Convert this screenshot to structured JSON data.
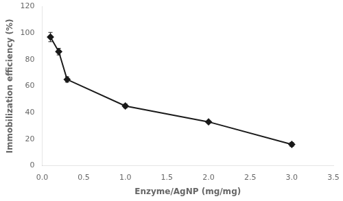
{
  "chart_data": {
    "type": "line",
    "x": [
      0.1,
      0.2,
      0.3,
      1.0,
      2.0,
      3.0
    ],
    "values": [
      97,
      86,
      65,
      45,
      33,
      16
    ],
    "yerr": [
      3.5,
      2.5,
      2.0,
      1.5,
      0.8,
      1.5
    ],
    "color": "#1a1a1a",
    "marker": "diamond",
    "xlabel": "Enzyme/AgNP (mg/mg)",
    "ylabel": "Immobilization efficiency (%)",
    "xlim": [
      0,
      3.5
    ],
    "ylim": [
      0,
      120
    ],
    "xticks": [
      {
        "value": 0,
        "label": "0.0"
      },
      0.5,
      {
        "value": 1.0,
        "label": "1.0"
      },
      1.5,
      {
        "value": 2.0,
        "label": "2.0"
      },
      2.5,
      {
        "value": 3.0,
        "label": "3.0"
      },
      3.5
    ],
    "yticks": [
      0,
      20,
      40,
      60,
      80,
      100,
      120
    ],
    "grid": false
  }
}
